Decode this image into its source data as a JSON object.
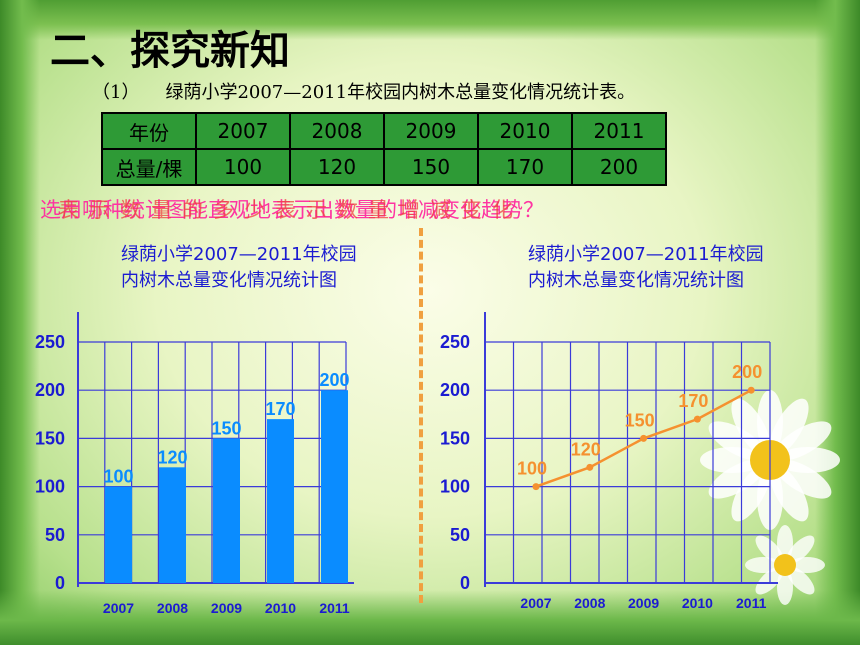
{
  "title": "二、探究新知",
  "subtitle": {
    "number": "（1）",
    "text": "绿荫小学2007—2011年校园内树木总量变化情况统计表。"
  },
  "table": {
    "header_label": "年份",
    "row_label": "总量/棵",
    "years": [
      "2007",
      "2008",
      "2009",
      "2010",
      "2011"
    ],
    "values": [
      "100",
      "120",
      "150",
      "170",
      "200"
    ]
  },
  "overlay": {
    "question_left": "选用哪种统计图能直观地表示出数量的增减变化趋势？",
    "question_right": "表示数量的多少表示数量增减变化"
  },
  "colors": {
    "bar": "#0a8cff",
    "line": "#f5912f",
    "grid": "#3b3bd9",
    "axis_text": "#1b1bd1",
    "table_bg": "#2e9a36",
    "question": "#ff2aa0"
  },
  "chart_data": [
    {
      "type": "bar",
      "title": "绿荫小学2007—2011年校园内树木总量变化情况统计图",
      "title_lines": [
        "绿荫小学2007—2011年校园",
        "内树木总量变化情况统计图"
      ],
      "categories": [
        "2007",
        "2008",
        "2009",
        "2010",
        "2011"
      ],
      "values": [
        100,
        120,
        150,
        170,
        200
      ],
      "ylim": [
        0,
        250
      ],
      "yticks": [
        0,
        50,
        100,
        150,
        200,
        250
      ],
      "grid": true
    },
    {
      "type": "line",
      "title": "绿荫小学2007—2011年校园内树木总量变化情况统计图",
      "title_lines": [
        "绿荫小学2007—2011年校园",
        "内树木总量变化情况统计图"
      ],
      "categories": [
        "2007",
        "2008",
        "2009",
        "2010",
        "2011"
      ],
      "values": [
        100,
        120,
        150,
        170,
        200
      ],
      "ylim": [
        0,
        250
      ],
      "yticks": [
        0,
        50,
        100,
        150,
        200,
        250
      ],
      "grid": true
    }
  ]
}
